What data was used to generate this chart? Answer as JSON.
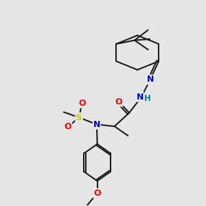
{
  "background_color": "#e6e6e6",
  "bond_color": "#1a1a1a",
  "atom_colors": {
    "O": "#ff0000",
    "N": "#0000cc",
    "S": "#cccc00",
    "H": "#008080",
    "C": "#1a1a1a"
  },
  "figsize": [
    3.0,
    3.0
  ],
  "dpi": 100
}
